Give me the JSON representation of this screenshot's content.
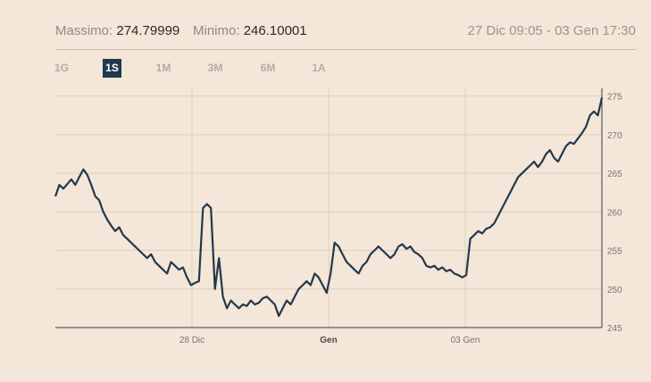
{
  "stats": {
    "max_label": "Massimo:",
    "max_value": "274.79999",
    "min_label": "Minimo:",
    "min_value": "246.10001",
    "date_range": "27 Dic 09:05 - 03 Gen 17:30"
  },
  "tabs": [
    {
      "label": "1G",
      "active": false
    },
    {
      "label": "1S",
      "active": true
    },
    {
      "label": "1M",
      "active": false
    },
    {
      "label": "3M",
      "active": false
    },
    {
      "label": "6M",
      "active": false
    },
    {
      "label": "1A",
      "active": false
    }
  ],
  "colors": {
    "background": "#f4e6d8",
    "line": "#22384c",
    "grid": "#dfd0c1",
    "active_tab": "#22384c"
  },
  "chart_data": {
    "type": "line",
    "series": [
      {
        "values": [
          262.0,
          263.5,
          263.0,
          263.6,
          264.2,
          263.5,
          264.5,
          265.5,
          264.8,
          263.5,
          262.0,
          261.5,
          260.0,
          259.0,
          258.2,
          257.5,
          258.0,
          257.0,
          256.5,
          256.0,
          255.5,
          255.0,
          254.5,
          254.0,
          254.5,
          253.5,
          253.0,
          252.5,
          252.0,
          253.5,
          253.0,
          252.5,
          252.8,
          251.5,
          250.5,
          250.8,
          251.0,
          260.5,
          261.0,
          260.5,
          250.0,
          254.0,
          249.0,
          247.5,
          248.5,
          248.0,
          247.5,
          248.0,
          247.8,
          248.5,
          248.0,
          248.2,
          248.8,
          249.0,
          248.5,
          248.0,
          246.5,
          247.5,
          248.5,
          248.0,
          249.0,
          250.0,
          250.5,
          251.0,
          250.5,
          252.0,
          251.5,
          250.5,
          249.5,
          252.0,
          256.0,
          255.5,
          254.5,
          253.5,
          253.0,
          252.5,
          252.0,
          253.0,
          253.5,
          254.5,
          255.0,
          255.5,
          255.0,
          254.5,
          254.0,
          254.5,
          255.5,
          255.8,
          255.2,
          255.5,
          254.8,
          254.5,
          254.0,
          253.0,
          252.8,
          253.0,
          252.5,
          252.8,
          252.3,
          252.5,
          252.0,
          251.8,
          251.5,
          251.8,
          256.5,
          257.0,
          257.5,
          257.2,
          257.8,
          258.0,
          258.5,
          259.5,
          260.5,
          261.5,
          262.5,
          263.5,
          264.5,
          265.0,
          265.5,
          266.0,
          266.5,
          265.8,
          266.5,
          267.5,
          268.0,
          267.0,
          266.5,
          267.5,
          268.5,
          269.0,
          268.8,
          269.5,
          270.2,
          271.0,
          272.5,
          273.0,
          272.5,
          274.79999
        ]
      }
    ],
    "x_ticks": [
      {
        "label": "28 Dic",
        "pos": 0.25,
        "strong": false
      },
      {
        "label": "Gen",
        "pos": 0.5,
        "strong": true
      },
      {
        "label": "03 Gen",
        "pos": 0.75,
        "strong": false
      }
    ],
    "y_ticks": [
      245,
      250,
      255,
      260,
      265,
      270,
      275
    ],
    "ylim": [
      245,
      276
    ],
    "grid": true
  }
}
